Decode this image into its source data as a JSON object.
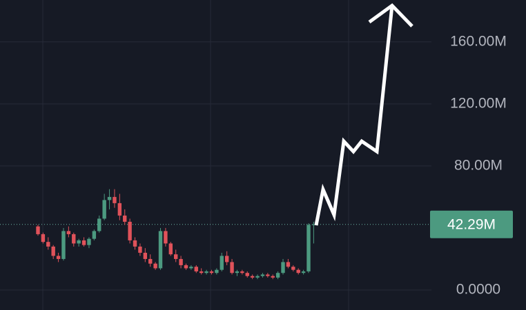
{
  "chart_data": {
    "type": "candlestick",
    "open": [
      41,
      36,
      31,
      28,
      22,
      20,
      38,
      36,
      30,
      32,
      29,
      33,
      38,
      46,
      58,
      60,
      56,
      48,
      44,
      32,
      28,
      24,
      20,
      17,
      14,
      38,
      30,
      23,
      20,
      16,
      14,
      15,
      12,
      11,
      12,
      11,
      13,
      22,
      18,
      11,
      12,
      11,
      9,
      8,
      9,
      10,
      9,
      8,
      11,
      18,
      15,
      13,
      11,
      12,
      42
    ],
    "high": [
      42,
      37,
      34,
      29,
      24,
      40,
      41,
      37,
      33,
      34,
      34,
      39,
      48,
      62,
      65,
      65,
      62,
      52,
      46,
      34,
      30,
      27,
      23,
      18,
      40,
      40,
      31,
      26,
      22,
      17,
      16,
      16,
      14,
      13,
      13,
      14,
      24,
      25,
      20,
      13,
      13,
      12,
      10,
      10,
      11,
      11,
      10,
      12,
      20,
      20,
      16,
      14,
      13,
      43,
      44
    ],
    "low": [
      35,
      30,
      26,
      20,
      18,
      19,
      34,
      28,
      28,
      28,
      27,
      32,
      37,
      45,
      52,
      53,
      45,
      42,
      30,
      26,
      22,
      18,
      15,
      13,
      13,
      28,
      22,
      18,
      14,
      13,
      13,
      11,
      10,
      10,
      10,
      10,
      12,
      16,
      10,
      9,
      10,
      8,
      7,
      7,
      8,
      8,
      7,
      7,
      10,
      14,
      12,
      10,
      10,
      11,
      30
    ],
    "close": [
      36,
      31,
      28,
      22,
      20,
      38,
      36,
      30,
      32,
      29,
      33,
      38,
      46,
      58,
      60,
      56,
      48,
      44,
      32,
      28,
      24,
      20,
      17,
      14,
      38,
      30,
      23,
      20,
      16,
      14,
      15,
      12,
      11,
      12,
      11,
      13,
      22,
      18,
      11,
      12,
      11,
      9,
      8,
      9,
      10,
      9,
      8,
      11,
      18,
      15,
      13,
      11,
      12,
      42,
      42.29
    ],
    "up_color": "#4c9a80",
    "down_color": "#e0525a",
    "last_price": {
      "value": 42.29,
      "label": "42.29M"
    },
    "ylim": [
      -12.9,
      187
    ],
    "yticks": [
      {
        "value": 0,
        "label": "0.0000"
      },
      {
        "value": 80,
        "label": "80.00M"
      },
      {
        "value": 120,
        "label": "120.00M"
      },
      {
        "value": 160,
        "label": "160.00M"
      }
    ],
    "grid": true
  }
}
